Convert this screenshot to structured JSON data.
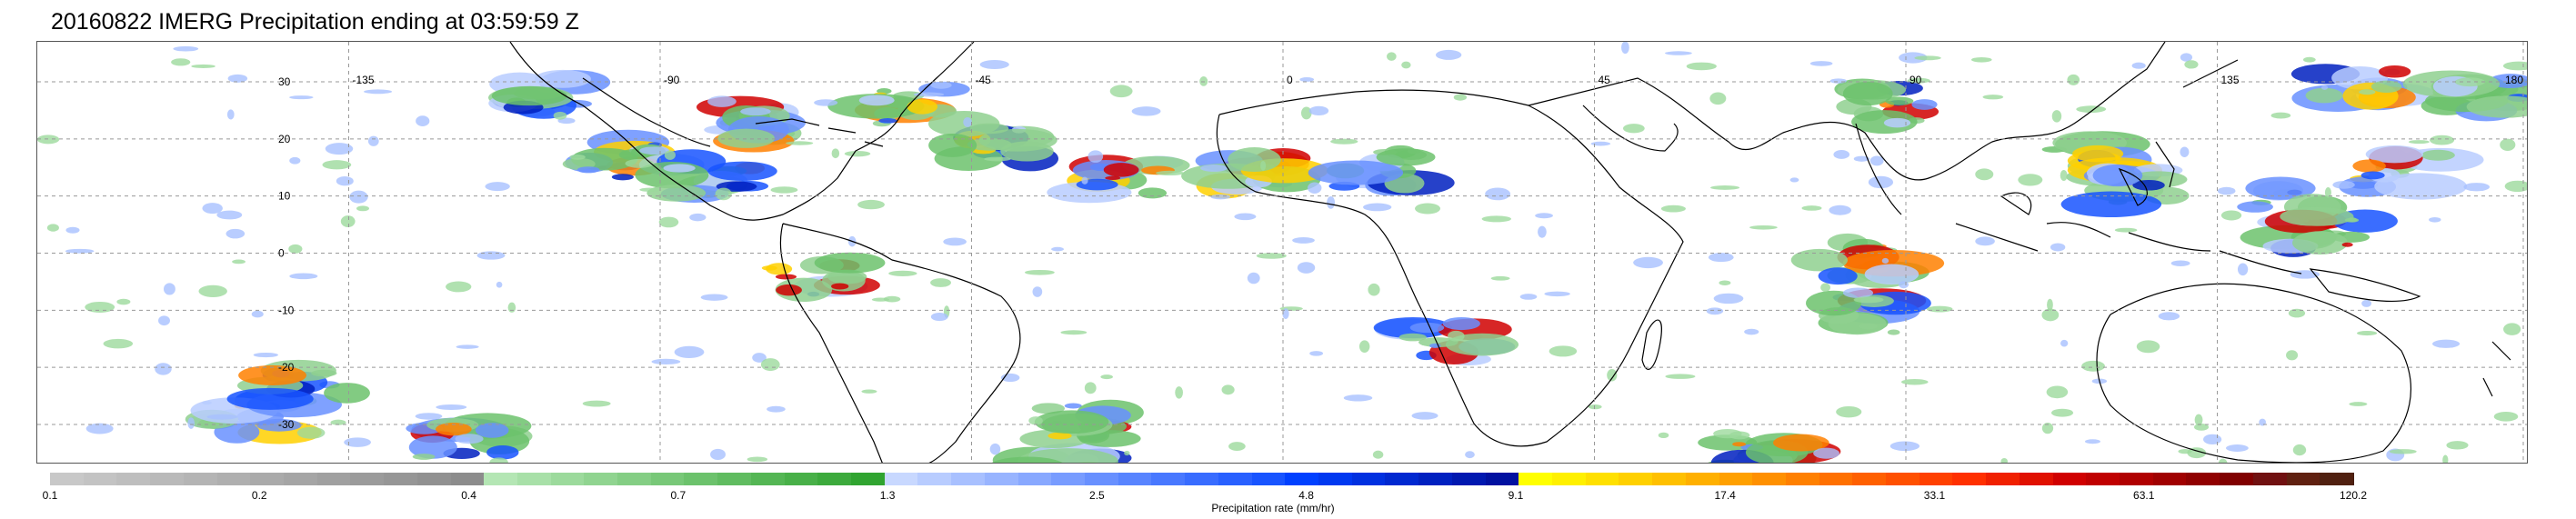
{
  "title": "20160822 IMERG Precipitation ending at 03:59:59 Z",
  "map": {
    "longitude_labels": [
      "-135",
      "-90",
      "-45",
      "0",
      "45",
      "90",
      "135",
      "180"
    ],
    "latitude_labels": [
      "30",
      "20",
      "10",
      "0",
      "-10",
      "-20",
      "-30"
    ],
    "grid": true
  },
  "colorbar": {
    "label": "Precipitation rate (mm/hr)",
    "tick_labels": [
      "0.1",
      "0.2",
      "0.4",
      "0.7",
      "1.3",
      "2.5",
      "4.8",
      "9.1",
      "17.4",
      "33.1",
      "63.1",
      "120.2"
    ],
    "segment_colors": [
      "#c8c8c8",
      "#c3c3c3",
      "#bebebe",
      "#b9b9b9",
      "#b4b4b4",
      "#afafaf",
      "#aaaaaa",
      "#a5a5a5",
      "#a0a0a0",
      "#9b9b9b",
      "#969696",
      "#919191",
      "#8c8c8c",
      "#b4e6b4",
      "#a8e0a8",
      "#9cda9c",
      "#90d490",
      "#84ce84",
      "#78c878",
      "#6cc26c",
      "#60bc60",
      "#54b654",
      "#48b048",
      "#3caa3c",
      "#30a430",
      "#c8d8ff",
      "#b8ccff",
      "#a8c0ff",
      "#98b4ff",
      "#88a8ff",
      "#789cff",
      "#6890ff",
      "#5884ff",
      "#4878ff",
      "#386cff",
      "#2860ff",
      "#1854ff",
      "#0040ff",
      "#0038f0",
      "#0030e0",
      "#0028d0",
      "#0020c0",
      "#0018b0",
      "#0010a0",
      "#ffff00",
      "#fff000",
      "#ffe000",
      "#ffd000",
      "#ffc000",
      "#ffb000",
      "#ffa000",
      "#ff9000",
      "#ff8000",
      "#ff7000",
      "#ff6000",
      "#ff5000",
      "#ff4000",
      "#ff3000",
      "#f02000",
      "#e01000",
      "#d00000",
      "#c00000",
      "#b00000",
      "#a00000",
      "#900000",
      "#800000",
      "#701010",
      "#602010",
      "#502010"
    ]
  }
}
